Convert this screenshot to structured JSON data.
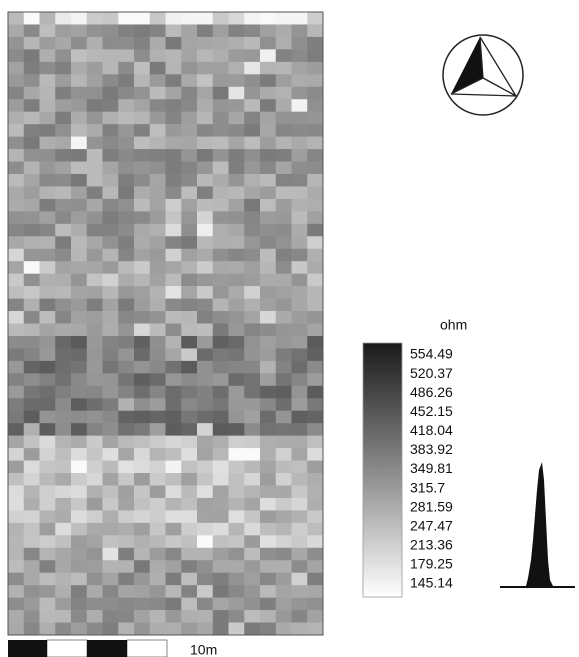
{
  "legend": {
    "unit": "ohm",
    "ticks": [
      554.49,
      520.37,
      486.26,
      452.15,
      418.04,
      383.92,
      349.81,
      315.7,
      281.59,
      247.47,
      213.36,
      179.25,
      145.14
    ]
  },
  "scale_bar": {
    "label": "10m"
  }
}
